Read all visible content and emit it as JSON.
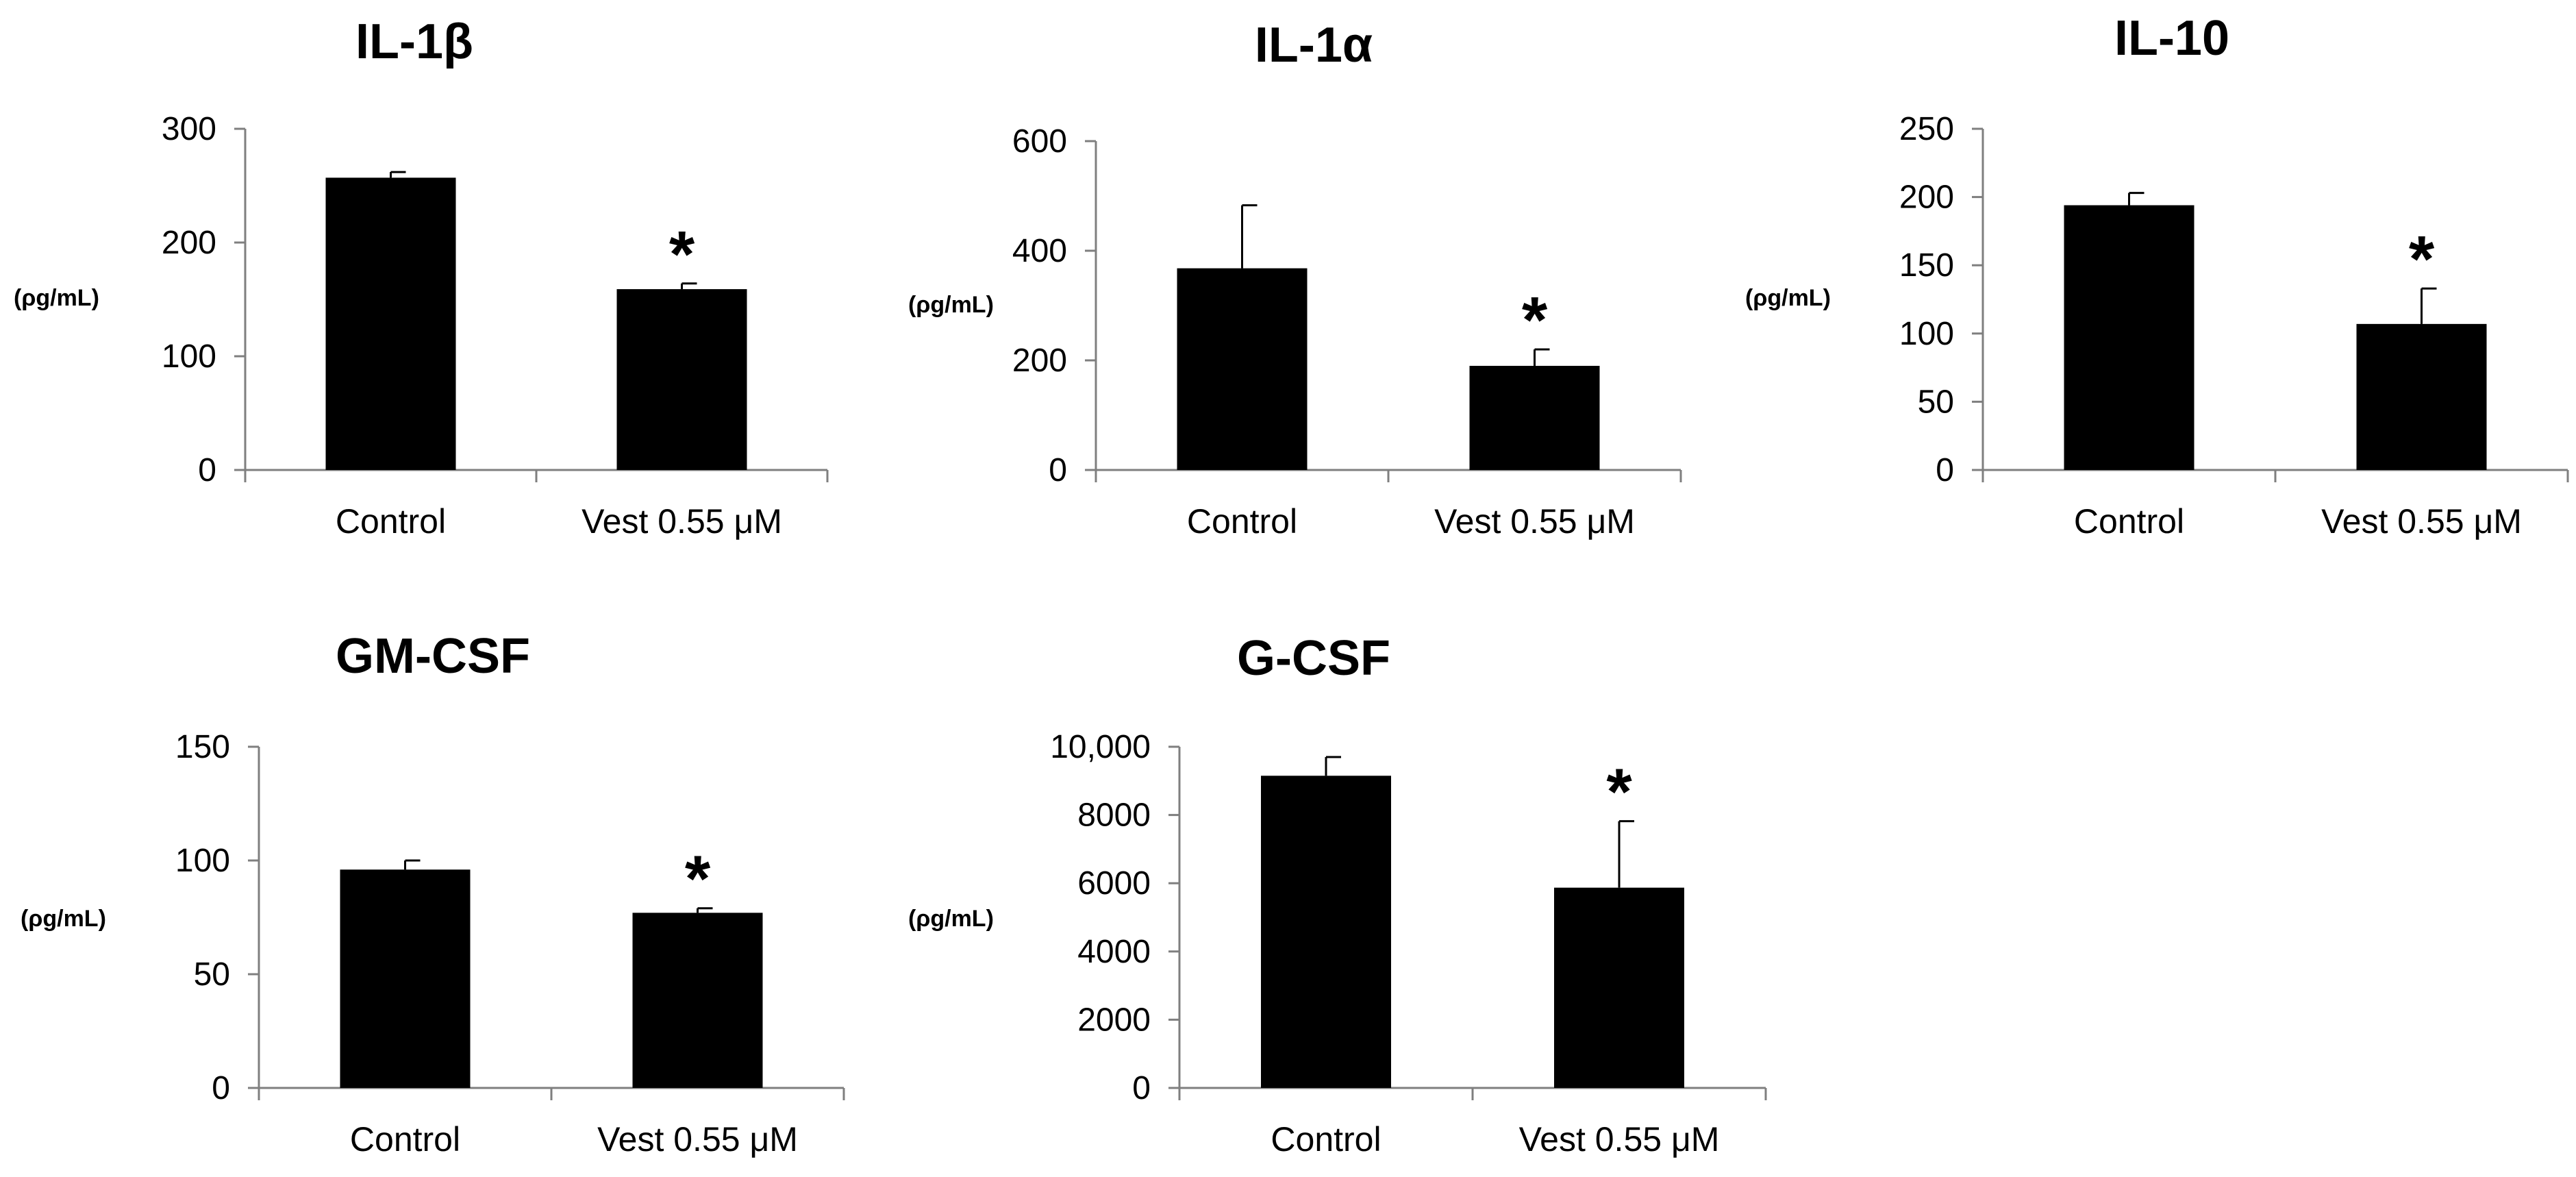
{
  "chart_data": [
    {
      "type": "bar",
      "title": "IL-1β",
      "ylabel": "(ρg/mL)",
      "categories": [
        "Control",
        "Vest 0.55 μM"
      ],
      "values": [
        257,
        159
      ],
      "errors": [
        5,
        5
      ],
      "significance": [
        "",
        "*"
      ],
      "ylim": [
        0,
        300
      ],
      "yticks": [
        0,
        100,
        200,
        300
      ],
      "ytick_labels": [
        "0",
        "100",
        "200",
        "300"
      ]
    },
    {
      "type": "bar",
      "title": "IL-1α",
      "ylabel": "(ρg/mL)",
      "categories": [
        "Control",
        "Vest 0.55 μM"
      ],
      "values": [
        368,
        190
      ],
      "errors": [
        115,
        30
      ],
      "significance": [
        "",
        "*"
      ],
      "ylim": [
        0,
        600
      ],
      "yticks": [
        0,
        200,
        400,
        600
      ],
      "ytick_labels": [
        "0",
        "200",
        "400",
        "600"
      ]
    },
    {
      "type": "bar",
      "title": "IL-10",
      "ylabel": "(ρg/mL)",
      "categories": [
        "Control",
        "Vest 0.55 μM"
      ],
      "values": [
        194,
        107
      ],
      "errors": [
        9,
        26
      ],
      "significance": [
        "",
        "*"
      ],
      "ylim": [
        0,
        250
      ],
      "yticks": [
        0,
        50,
        100,
        150,
        200,
        250
      ],
      "ytick_labels": [
        "0",
        "50",
        "100",
        "150",
        "200",
        "250"
      ]
    },
    {
      "type": "bar",
      "title": "GM-CSF",
      "ylabel": "(ρg/mL)",
      "categories": [
        "Control",
        "Vest 0.55 μM"
      ],
      "values": [
        96,
        77
      ],
      "errors": [
        4,
        2
      ],
      "significance": [
        "",
        "*"
      ],
      "ylim": [
        0,
        150
      ],
      "yticks": [
        0,
        50,
        100,
        150
      ],
      "ytick_labels": [
        "0",
        "50",
        "100",
        "150"
      ]
    },
    {
      "type": "bar",
      "title": "G-CSF",
      "ylabel": "(ρg/mL)",
      "categories": [
        "Control",
        "Vest 0.55 μM"
      ],
      "values": [
        9150,
        5870
      ],
      "errors": [
        550,
        1950
      ],
      "significance": [
        "",
        "*"
      ],
      "ylim": [
        0,
        10000
      ],
      "yticks": [
        0,
        2000,
        4000,
        6000,
        8000,
        10000
      ],
      "ytick_labels": [
        "0",
        "2000",
        "4000",
        "6000",
        "8000",
        "10,000"
      ]
    }
  ]
}
